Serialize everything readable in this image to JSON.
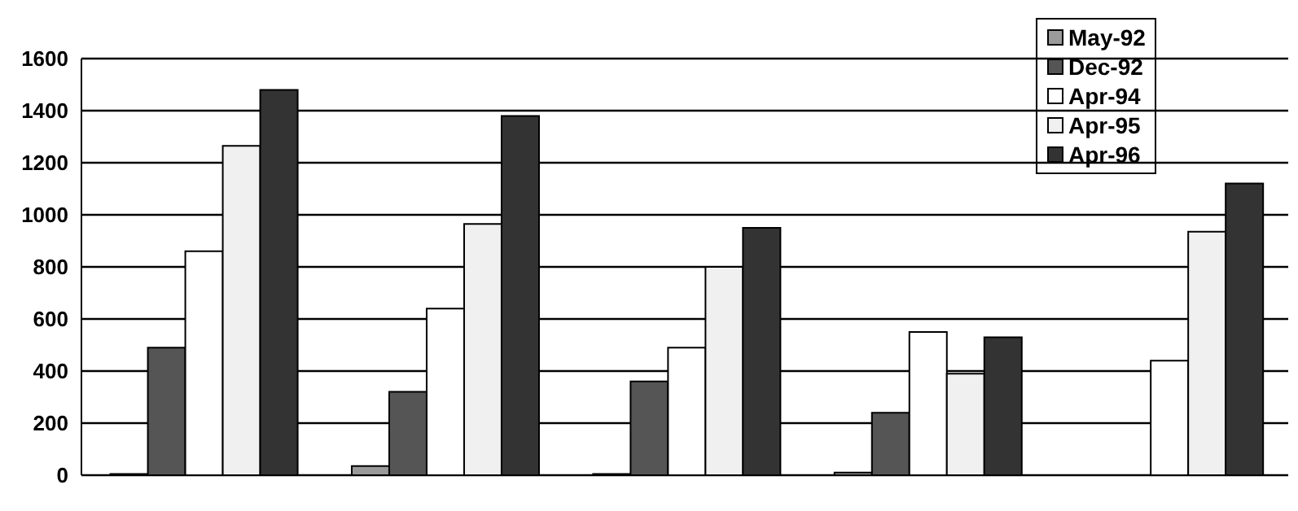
{
  "chart_data": {
    "type": "bar",
    "categories": [
      null,
      null,
      null,
      null,
      null
    ],
    "series": [
      {
        "name": "May-92",
        "color": "#9a9a9a",
        "values": [
          5,
          35,
          5,
          10,
          null
        ]
      },
      {
        "name": "Dec-92",
        "color": "#555555",
        "values": [
          490,
          320,
          360,
          240,
          null
        ]
      },
      {
        "name": "Apr-94",
        "color": "#ffffff",
        "values": [
          860,
          640,
          490,
          550,
          440
        ]
      },
      {
        "name": "Apr-95",
        "color": "#f0f0f0",
        "values": [
          1265,
          965,
          800,
          390,
          935
        ]
      },
      {
        "name": "Apr-96",
        "color": "#333333",
        "values": [
          1480,
          1380,
          950,
          530,
          1120
        ]
      }
    ],
    "ylim": [
      0,
      1600
    ],
    "yticks": [
      0,
      200,
      400,
      600,
      800,
      1000,
      1200,
      1400,
      1600
    ],
    "grid": "y",
    "legend": "top right"
  }
}
